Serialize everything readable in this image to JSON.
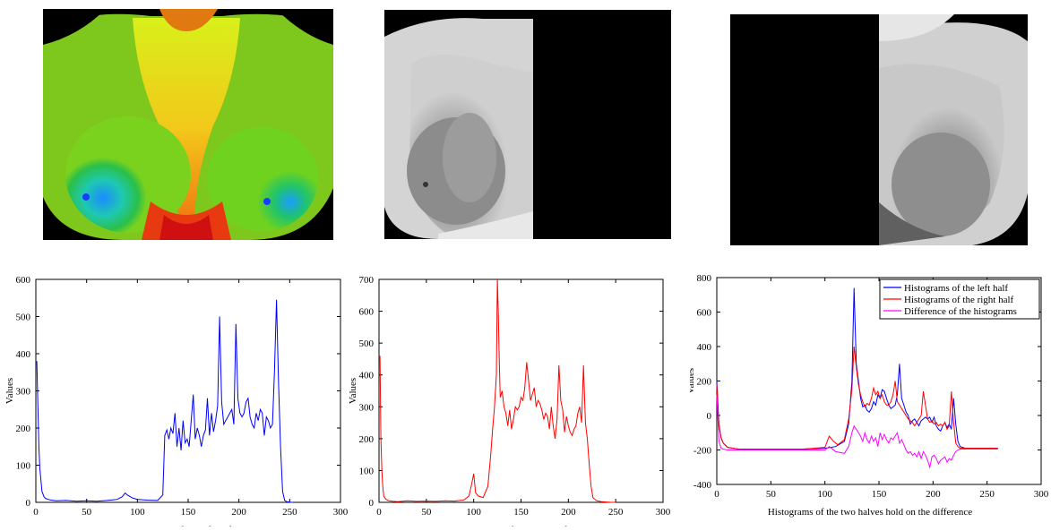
{
  "images": [
    {
      "name": "thermal-image-color",
      "description_free": true
    },
    {
      "name": "thermal-image-left-half-gray"
    },
    {
      "name": "thermal-image-right-half-gray"
    }
  ],
  "chart_data": [
    {
      "type": "line",
      "xlabel": "Histograms of the left half",
      "ylabel": "Values",
      "xlim": [
        0,
        300
      ],
      "ylim": [
        0,
        600
      ],
      "xticks": [
        0,
        50,
        100,
        150,
        200,
        250,
        300
      ],
      "yticks": [
        0,
        100,
        200,
        300,
        400,
        500,
        600
      ],
      "series": [
        {
          "color": "#0000ff",
          "x": [
            1,
            2,
            3,
            4,
            5,
            6,
            8,
            10,
            12,
            15,
            20,
            30,
            40,
            50,
            60,
            70,
            80,
            85,
            88,
            90,
            95,
            100,
            110,
            120,
            125,
            127,
            129,
            131,
            133,
            135,
            137,
            139,
            141,
            143,
            145,
            147,
            149,
            151,
            153,
            155,
            157,
            159,
            161,
            163,
            165,
            167,
            169,
            171,
            173,
            175,
            177,
            179,
            181,
            183,
            185,
            187,
            189,
            191,
            193,
            195,
            197,
            199,
            201,
            203,
            205,
            207,
            209,
            211,
            213,
            215,
            217,
            219,
            221,
            223,
            225,
            227,
            229,
            231,
            233,
            235,
            237,
            239,
            241,
            243,
            245,
            247,
            249,
            251,
            253
          ],
          "y": [
            380,
            260,
            150,
            90,
            60,
            30,
            15,
            10,
            8,
            6,
            4,
            5,
            3,
            4,
            3,
            5,
            8,
            15,
            25,
            20,
            12,
            8,
            6,
            5,
            20,
            180,
            195,
            170,
            200,
            185,
            240,
            150,
            200,
            140,
            220,
            160,
            170,
            150,
            220,
            290,
            170,
            200,
            180,
            150,
            180,
            195,
            280,
            180,
            240,
            190,
            220,
            260,
            500,
            270,
            210,
            220,
            230,
            240,
            250,
            210,
            480,
            280,
            240,
            230,
            240,
            270,
            280,
            230,
            210,
            200,
            240,
            220,
            250,
            240,
            180,
            230,
            220,
            200,
            210,
            350,
            545,
            320,
            150,
            30,
            5,
            2,
            1,
            0,
            0
          ]
        }
      ]
    },
    {
      "type": "line",
      "xlabel": "Histograms of the right half",
      "ylabel": "Values",
      "xlim": [
        0,
        300
      ],
      "ylim": [
        0,
        700
      ],
      "xticks": [
        0,
        50,
        100,
        150,
        200,
        250,
        300
      ],
      "yticks": [
        0,
        100,
        200,
        300,
        400,
        500,
        600,
        700
      ],
      "series": [
        {
          "color": "#ff0000",
          "x": [
            1,
            2,
            3,
            4,
            5,
            7,
            10,
            15,
            20,
            30,
            40,
            50,
            60,
            70,
            80,
            90,
            95,
            98,
            100,
            102,
            105,
            110,
            115,
            118,
            120,
            122,
            124,
            125,
            126,
            127,
            128,
            130,
            132,
            134,
            136,
            138,
            140,
            142,
            144,
            146,
            148,
            150,
            152,
            154,
            156,
            158,
            160,
            162,
            164,
            166,
            168,
            170,
            172,
            174,
            176,
            178,
            180,
            182,
            184,
            186,
            188,
            190,
            192,
            194,
            196,
            198,
            200,
            202,
            204,
            206,
            208,
            210,
            212,
            214,
            216,
            218,
            220,
            222,
            224,
            226,
            230,
            235,
            240,
            245,
            250
          ],
          "y": [
            460,
            200,
            100,
            50,
            20,
            10,
            5,
            3,
            2,
            5,
            3,
            4,
            3,
            5,
            4,
            8,
            20,
            60,
            90,
            30,
            20,
            15,
            50,
            150,
            230,
            300,
            400,
            700,
            600,
            450,
            330,
            350,
            300,
            280,
            240,
            290,
            230,
            260,
            300,
            290,
            300,
            330,
            320,
            360,
            440,
            380,
            320,
            340,
            360,
            300,
            320,
            310,
            290,
            260,
            280,
            270,
            230,
            300,
            240,
            200,
            260,
            430,
            320,
            290,
            220,
            270,
            240,
            220,
            210,
            230,
            240,
            280,
            300,
            250,
            430,
            250,
            200,
            120,
            50,
            15,
            5,
            2,
            1,
            0,
            0
          ]
        }
      ]
    },
    {
      "type": "line",
      "xlabel": "Histograms of the two halves hold on the difference",
      "ylabel": "Values",
      "xlim": [
        0,
        300
      ],
      "ylim": [
        -400,
        800
      ],
      "xticks": [
        0,
        50,
        100,
        150,
        200,
        250,
        300
      ],
      "yticks": [
        -400,
        -200,
        0,
        200,
        400,
        600,
        800
      ],
      "legend": {
        "position": "top-right",
        "entries": [
          "Histograms of the left half",
          "Histograms of the right half",
          "Difference of the histograms"
        ]
      },
      "series": [
        {
          "name": "Histograms of the left half",
          "color": "#0000ff",
          "x": [
            0,
            2,
            4,
            6,
            10,
            20,
            40,
            60,
            80,
            100,
            110,
            118,
            122,
            125,
            127,
            129,
            131,
            133,
            135,
            137,
            139,
            141,
            143,
            145,
            147,
            149,
            151,
            153,
            155,
            157,
            159,
            161,
            163,
            165,
            167,
            169,
            171,
            173,
            175,
            177,
            179,
            181,
            183,
            185,
            187,
            189,
            191,
            193,
            195,
            197,
            199,
            201,
            203,
            205,
            207,
            209,
            211,
            213,
            215,
            217,
            219,
            221,
            223,
            225,
            230,
            240,
            250,
            260
          ],
          "y": [
            200,
            -50,
            -130,
            -160,
            -185,
            -195,
            -195,
            -195,
            -195,
            -190,
            -180,
            -150,
            -50,
            200,
            740,
            300,
            200,
            100,
            50,
            60,
            30,
            20,
            40,
            80,
            60,
            120,
            100,
            150,
            140,
            100,
            60,
            40,
            50,
            60,
            120,
            300,
            100,
            60,
            20,
            0,
            -50,
            -30,
            -20,
            -40,
            -60,
            -30,
            -20,
            -10,
            -20,
            -10,
            -40,
            -10,
            -60,
            -80,
            -90,
            -60,
            -40,
            -70,
            -50,
            -80,
            100,
            -50,
            -150,
            -180,
            -190,
            -190,
            -190,
            -190
          ]
        },
        {
          "name": "Histograms of the right half",
          "color": "#ff0000",
          "x": [
            0,
            2,
            4,
            6,
            10,
            20,
            40,
            60,
            80,
            100,
            104,
            108,
            112,
            118,
            122,
            125,
            127,
            129,
            131,
            133,
            135,
            137,
            139,
            141,
            143,
            145,
            147,
            149,
            151,
            153,
            155,
            157,
            159,
            161,
            163,
            165,
            167,
            169,
            171,
            173,
            175,
            177,
            179,
            181,
            183,
            185,
            187,
            189,
            191,
            193,
            195,
            197,
            199,
            201,
            203,
            205,
            207,
            209,
            211,
            213,
            215,
            217,
            219,
            221,
            223,
            225,
            230,
            240,
            250,
            260
          ],
          "y": [
            180,
            -60,
            -130,
            -160,
            -185,
            -195,
            -195,
            -195,
            -195,
            -185,
            -120,
            -150,
            -170,
            -140,
            -20,
            150,
            400,
            280,
            180,
            120,
            80,
            50,
            70,
            60,
            100,
            160,
            120,
            140,
            100,
            120,
            80,
            60,
            60,
            80,
            120,
            200,
            80,
            60,
            40,
            20,
            0,
            -20,
            -30,
            -40,
            -60,
            -40,
            -20,
            0,
            140,
            60,
            -20,
            -40,
            -30,
            -50,
            -40,
            -60,
            -50,
            -60,
            -40,
            -80,
            -60,
            140,
            -40,
            -160,
            -180,
            -190,
            -190,
            -190,
            -190,
            -190
          ]
        },
        {
          "name": "Difference of the histograms",
          "color": "#ff00ff",
          "x": [
            0,
            2,
            4,
            6,
            10,
            20,
            40,
            60,
            80,
            100,
            104,
            110,
            118,
            122,
            125,
            127,
            129,
            131,
            133,
            135,
            137,
            139,
            141,
            143,
            145,
            147,
            149,
            151,
            153,
            155,
            157,
            159,
            161,
            163,
            165,
            167,
            169,
            171,
            173,
            175,
            177,
            179,
            181,
            183,
            185,
            187,
            189,
            191,
            193,
            195,
            197,
            199,
            201,
            203,
            205,
            207,
            209,
            211,
            213,
            215,
            217,
            219,
            221,
            223,
            225,
            230,
            240,
            250,
            260
          ],
          "y": [
            120,
            -150,
            -190,
            -195,
            -200,
            -200,
            -200,
            -200,
            -200,
            -200,
            -180,
            -210,
            -220,
            -180,
            -100,
            -60,
            -80,
            -100,
            -120,
            -150,
            -100,
            -140,
            -160,
            -120,
            -150,
            -130,
            -180,
            -100,
            -140,
            -110,
            -140,
            -160,
            -130,
            -140,
            -120,
            -100,
            -160,
            -140,
            -170,
            -200,
            -220,
            -210,
            -230,
            -220,
            -240,
            -210,
            -250,
            -210,
            -230,
            -260,
            -300,
            -240,
            -230,
            -250,
            -280,
            -260,
            -250,
            -240,
            -270,
            -250,
            -260,
            -230,
            -210,
            -200,
            -195,
            -195,
            -195,
            -195,
            -195
          ]
        }
      ]
    }
  ]
}
